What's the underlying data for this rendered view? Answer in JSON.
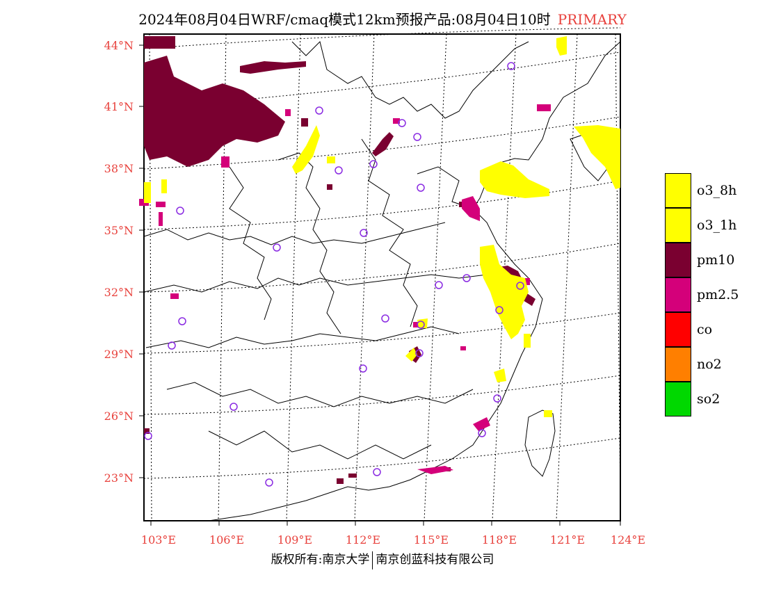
{
  "header": {
    "title": "2024年08月04日WRF/cmaq模式12km预报产品:08月04日10时",
    "tag": "PRIMARY"
  },
  "map": {
    "lat_labels": [
      "44°N",
      "41°N",
      "38°N",
      "35°N",
      "32°N",
      "29°N",
      "26°N",
      "23°N"
    ],
    "lon_labels": [
      "103°E",
      "106°E",
      "109°E",
      "112°E",
      "115°E",
      "118°E",
      "121°E",
      "124°E"
    ],
    "tick_color": "#e8413c",
    "station_marker_color": "#8a2be2"
  },
  "legend": {
    "items": [
      {
        "label": "o3_8h",
        "color": "#ffff00"
      },
      {
        "label": "o3_1h",
        "color": "#ffff00"
      },
      {
        "label": "pm10",
        "color": "#7a0030"
      },
      {
        "label": "pm2.5",
        "color": "#d4007a"
      },
      {
        "label": "co",
        "color": "#ff0000"
      },
      {
        "label": "no2",
        "color": "#ff7f00"
      },
      {
        "label": "so2",
        "color": "#00d800"
      }
    ]
  },
  "footer": {
    "left": "版权所有:南京大学",
    "right": "南京创蓝科技有限公司"
  }
}
